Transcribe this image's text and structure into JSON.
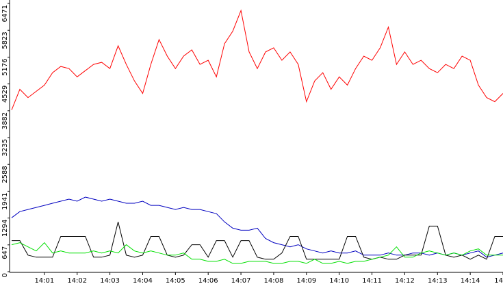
{
  "chart_data": {
    "type": "line",
    "categories": [
      null,
      null,
      null,
      null,
      "14:01",
      null,
      null,
      null,
      "14:02",
      null,
      null,
      null,
      "14:03",
      null,
      null,
      null,
      "14:04",
      null,
      null,
      null,
      "14:05",
      null,
      null,
      null,
      "14:06",
      null,
      null,
      null,
      "14:07",
      null,
      null,
      null,
      "14:08",
      null,
      null,
      null,
      "14:09",
      null,
      null,
      null,
      "14:10",
      null,
      null,
      null,
      "14:11",
      null,
      null,
      null,
      "14:12",
      null,
      null,
      null,
      "14:13",
      null,
      null,
      null,
      "14:14",
      null,
      null,
      null,
      "14"
    ],
    "series": [
      {
        "name": "red",
        "color": "#ff0000",
        "values": [
          3900,
          4400,
          4200,
          4350,
          4500,
          4800,
          4950,
          4900,
          4700,
          4850,
          5000,
          5050,
          4900,
          5450,
          5000,
          4600,
          4300,
          5000,
          5600,
          5200,
          4900,
          5200,
          5350,
          5000,
          5100,
          4700,
          5500,
          5800,
          6300,
          5300,
          4900,
          5300,
          5400,
          5100,
          5300,
          5000,
          4100,
          4600,
          4800,
          4400,
          4700,
          4500,
          4900,
          5200,
          5100,
          5400,
          5900,
          5000,
          5300,
          5000,
          5100,
          4900,
          4800,
          5000,
          4900,
          5200,
          5100,
          4500,
          4200,
          4100,
          4300
        ]
      },
      {
        "name": "blue",
        "color": "#0000c0",
        "values": [
          1300,
          1450,
          1500,
          1550,
          1600,
          1650,
          1700,
          1750,
          1700,
          1800,
          1750,
          1700,
          1750,
          1700,
          1650,
          1650,
          1700,
          1600,
          1600,
          1550,
          1500,
          1550,
          1500,
          1500,
          1450,
          1400,
          1200,
          1050,
          1000,
          1000,
          1050,
          800,
          700,
          650,
          600,
          650,
          550,
          500,
          450,
          500,
          450,
          450,
          500,
          400,
          400,
          400,
          450,
          400,
          400,
          450,
          450,
          400,
          450,
          400,
          450,
          400,
          450,
          500,
          350,
          400,
          450
        ]
      },
      {
        "name": "black",
        "color": "#000000",
        "values": [
          750,
          750,
          400,
          350,
          350,
          350,
          850,
          850,
          850,
          850,
          350,
          350,
          400,
          1200,
          400,
          350,
          400,
          850,
          850,
          400,
          350,
          400,
          650,
          650,
          350,
          750,
          750,
          350,
          750,
          750,
          350,
          300,
          300,
          450,
          850,
          850,
          300,
          300,
          300,
          300,
          300,
          850,
          850,
          350,
          300,
          350,
          300,
          300,
          400,
          400,
          400,
          1100,
          1100,
          400,
          350,
          400,
          300,
          400,
          300,
          850,
          850
        ]
      },
      {
        "name": "green",
        "color": "#00e000",
        "values": [
          650,
          700,
          600,
          500,
          700,
          450,
          500,
          450,
          450,
          450,
          500,
          450,
          500,
          450,
          650,
          500,
          450,
          500,
          450,
          400,
          400,
          450,
          300,
          300,
          250,
          250,
          300,
          200,
          200,
          250,
          250,
          250,
          200,
          200,
          250,
          250,
          200,
          300,
          200,
          200,
          250,
          200,
          250,
          250,
          300,
          350,
          400,
          600,
          350,
          350,
          450,
          500,
          450,
          400,
          450,
          400,
          500,
          550,
          400,
          400,
          400
        ]
      }
    ],
    "ylim": [
      0,
      6471
    ],
    "yticks": [
      0,
      647,
      1294,
      1941,
      2588,
      3235,
      3882,
      4529,
      5176,
      5823,
      6471
    ],
    "grid": false,
    "legend": false
  }
}
